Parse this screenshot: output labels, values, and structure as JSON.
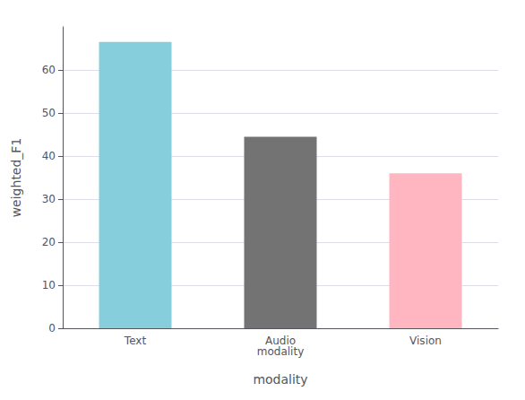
{
  "chart_data": {
    "type": "bar",
    "categories": [
      "Text",
      "Audio\nmodality",
      "Vision"
    ],
    "values": [
      66.5,
      44.5,
      36.0
    ],
    "colors": [
      "#87CEDC",
      "#737373",
      "#FFB6C1"
    ],
    "xlabel": "modality",
    "ylabel": "weighted_F1",
    "ylim": [
      0,
      70
    ],
    "yticks": [
      0,
      10,
      20,
      30,
      40,
      50,
      60
    ],
    "grid": true
  }
}
